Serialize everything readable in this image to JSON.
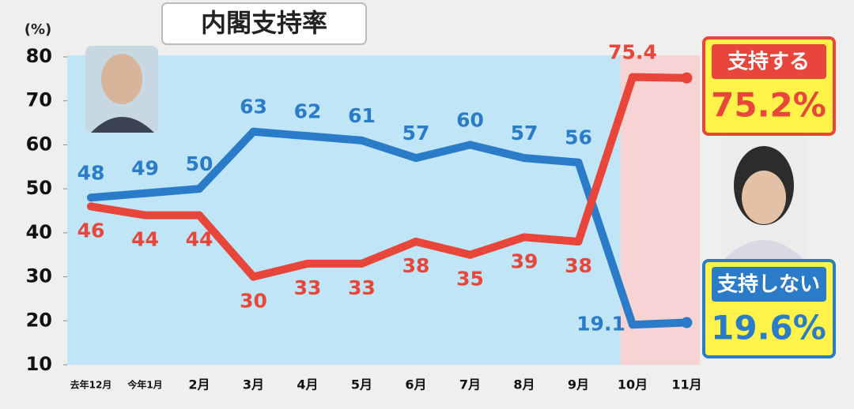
{
  "chart_data": {
    "type": "line",
    "title": "内閣支持率",
    "y_label": "(%)",
    "categories": [
      "去年12月",
      "今年1月",
      "2月",
      "3月",
      "4月",
      "5月",
      "6月",
      "7月",
      "8月",
      "9月",
      "10月",
      "11月"
    ],
    "series": [
      {
        "name": "支持しない",
        "color": "#2a7cc9",
        "values": [
          48,
          49,
          50,
          63,
          62,
          61,
          57,
          60,
          57,
          56,
          19.1,
          19.6
        ],
        "value_labels": [
          "48",
          "49",
          "50",
          "63",
          "62",
          "61",
          "57",
          "60",
          "57",
          "56",
          "19.1",
          "19.6%"
        ]
      },
      {
        "name": "支持する",
        "color": "#e8463a",
        "values": [
          46,
          44,
          44,
          30,
          33,
          33,
          38,
          35,
          39,
          38,
          75.4,
          75.2
        ],
        "value_labels": [
          "46",
          "44",
          "44",
          "30",
          "33",
          "33",
          "38",
          "35",
          "39",
          "38",
          "75.4",
          "75.2%"
        ]
      }
    ],
    "ylim": [
      10,
      80
    ],
    "yticks": [
      10,
      20,
      30,
      40,
      50,
      60,
      70,
      80
    ]
  }
}
